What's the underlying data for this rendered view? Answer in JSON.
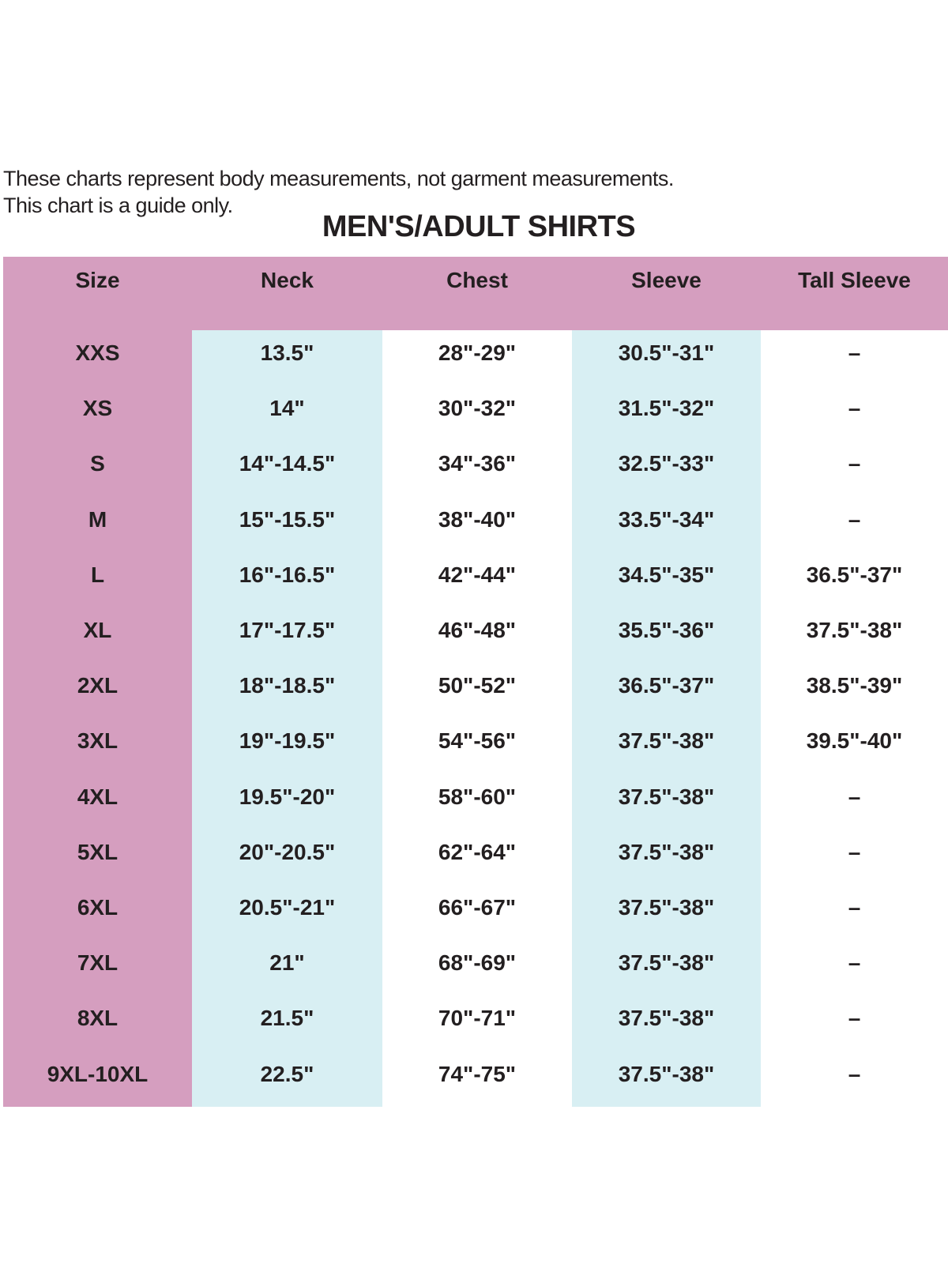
{
  "notes": [
    "These charts represent body measurements, not garment measurements.",
    "This chart is a guide only."
  ],
  "title": "MEN'S/ADULT SHIRTS",
  "colors": {
    "header": "#d59ebf",
    "size_column": "#d59ebf",
    "alt_column": "#d8eff3"
  },
  "columns": [
    "Size",
    "Neck",
    "Chest",
    "Sleeve",
    "Tall Sleeve"
  ],
  "rows": [
    [
      "XXS",
      "13.5\"",
      "28\"-29\"",
      "30.5\"-31\"",
      "–"
    ],
    [
      "XS",
      "14\"",
      "30\"-32\"",
      "31.5\"-32\"",
      "–"
    ],
    [
      "S",
      "14\"-14.5\"",
      "34\"-36\"",
      "32.5\"-33\"",
      "–"
    ],
    [
      "M",
      "15\"-15.5\"",
      "38\"-40\"",
      "33.5\"-34\"",
      "–"
    ],
    [
      "L",
      "16\"-16.5\"",
      "42\"-44\"",
      "34.5\"-35\"",
      "36.5\"-37\""
    ],
    [
      "XL",
      "17\"-17.5\"",
      "46\"-48\"",
      "35.5\"-36\"",
      "37.5\"-38\""
    ],
    [
      "2XL",
      "18\"-18.5\"",
      "50\"-52\"",
      "36.5\"-37\"",
      "38.5\"-39\""
    ],
    [
      "3XL",
      "19\"-19.5\"",
      "54\"-56\"",
      "37.5\"-38\"",
      "39.5\"-40\""
    ],
    [
      "4XL",
      "19.5\"-20\"",
      "58\"-60\"",
      "37.5\"-38\"",
      "–"
    ],
    [
      "5XL",
      "20\"-20.5\"",
      "62\"-64\"",
      "37.5\"-38\"",
      "–"
    ],
    [
      "6XL",
      "20.5\"-21\"",
      "66\"-67\"",
      "37.5\"-38\"",
      "–"
    ],
    [
      "7XL",
      "21\"",
      "68\"-69\"",
      "37.5\"-38\"",
      "–"
    ],
    [
      "8XL",
      "21.5\"",
      "70\"-71\"",
      "37.5\"-38\"",
      "–"
    ],
    [
      "9XL-10XL",
      "22.5\"",
      "74\"-75\"",
      "37.5\"-38\"",
      "–"
    ]
  ]
}
